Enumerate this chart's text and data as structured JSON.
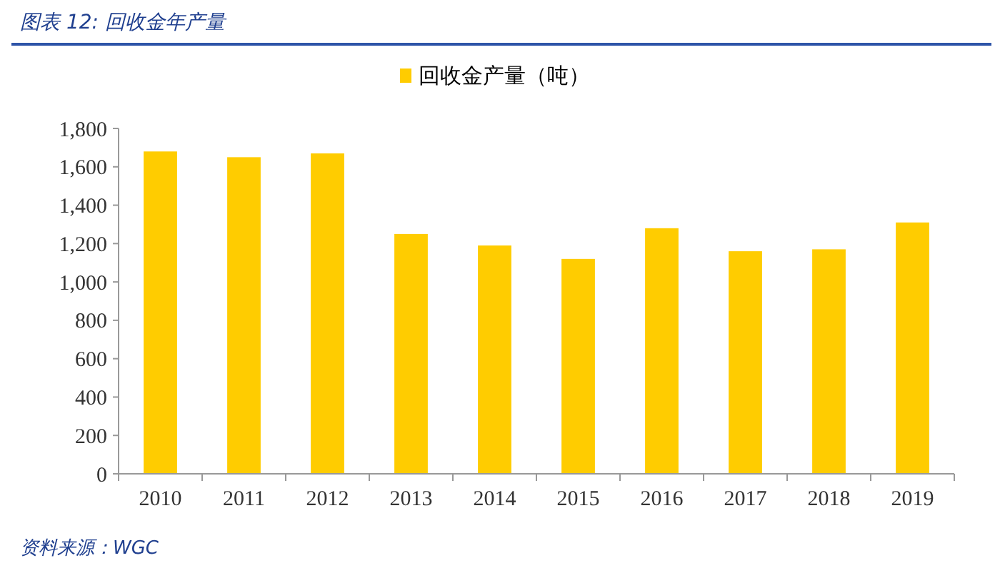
{
  "chart_data": {
    "type": "bar",
    "title": "图表 12:  回收金年产量",
    "categories": [
      "2010",
      "2011",
      "2012",
      "2013",
      "2014",
      "2015",
      "2016",
      "2017",
      "2018",
      "2019"
    ],
    "series": [
      {
        "name": "回收金产量（吨）",
        "color": "#ffcc00",
        "values": [
          1680,
          1650,
          1670,
          1250,
          1190,
          1120,
          1280,
          1160,
          1170,
          1310
        ]
      }
    ],
    "ylim": [
      0,
      1800
    ],
    "yticks": [
      0,
      200,
      400,
      600,
      800,
      {
        "value": 1000,
        "label": "1,000"
      },
      {
        "value": 1200,
        "label": "1,200"
      },
      {
        "value": 1400,
        "label": "1,400"
      },
      {
        "value": 1600,
        "label": "1,600"
      },
      {
        "value": 1800,
        "label": "1,800"
      }
    ],
    "grid": false,
    "legend": "top",
    "annotations": [
      "资料来源：WGC"
    ]
  }
}
